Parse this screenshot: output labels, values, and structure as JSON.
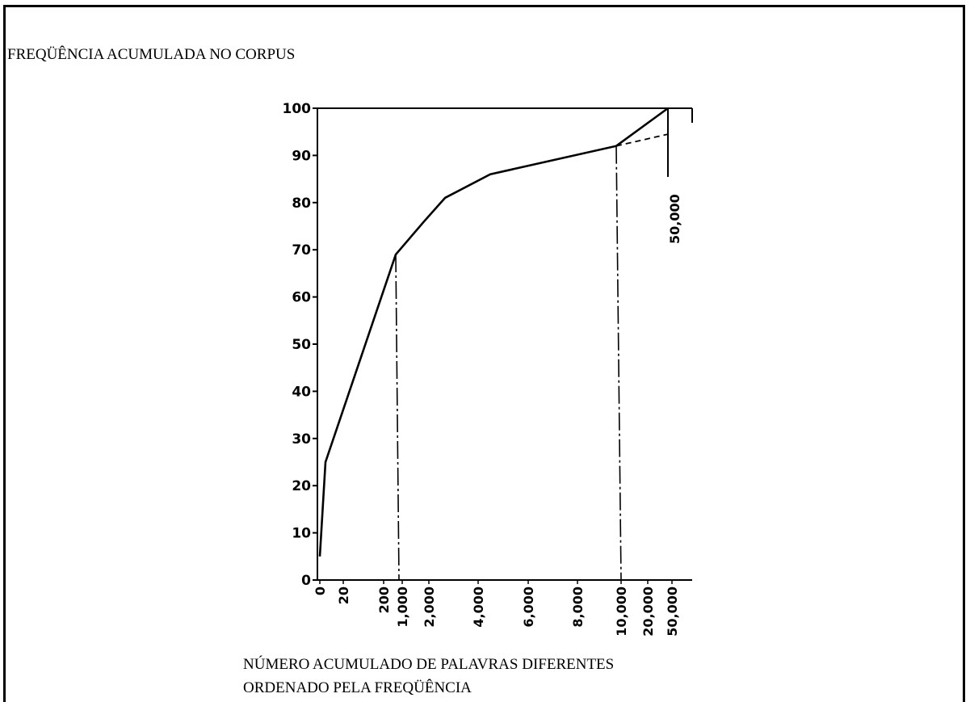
{
  "chart_data": {
    "type": "line",
    "title": "FREQÜÊNCIA ACUMULADA NO CORPUS",
    "xlabel_lines": [
      "NÚMERO ACUMULADO DE PALAVRAS DIFERENTES",
      "ORDENADO PELA FREQÜÊNCIA"
    ],
    "ylabel": "",
    "x_scale": "categorical (non-linear)",
    "x_ticks": [
      "0",
      "20",
      "200",
      "1,000",
      "2,000",
      "4,000",
      "6,000",
      "8,000",
      "10,000",
      "20,000",
      "50,000"
    ],
    "y_ticks": [
      "0",
      "10",
      "20",
      "30",
      "40",
      "50",
      "60",
      "70",
      "80",
      "90",
      "100"
    ],
    "ylim": [
      0,
      100
    ],
    "grid": false,
    "series": [
      {
        "style": "solid",
        "points": [
          {
            "x": "0",
            "y": 5
          },
          {
            "x": "20",
            "y": 25
          },
          {
            "x": "1,000",
            "y": 69
          },
          {
            "x": "2,000",
            "y": 76
          },
          {
            "x": "2,400",
            "y": 81
          },
          {
            "x": "4,000",
            "y": 86
          },
          {
            "x": "10,000",
            "y": 92
          },
          {
            "x": "50,000",
            "y": 100
          }
        ]
      },
      {
        "style": "dashed",
        "points": [
          {
            "x": "10,000",
            "y": 92
          },
          {
            "x": "50,000",
            "y": 94.5
          }
        ]
      }
    ],
    "reference_lines": [
      {
        "x": "1,000",
        "y_top": 69,
        "style": "dash-dot"
      },
      {
        "x": "10,000",
        "y_top": 92,
        "style": "dash-dot"
      }
    ],
    "annotations": [
      {
        "text": "50,000",
        "at_x": "50,000"
      }
    ]
  }
}
